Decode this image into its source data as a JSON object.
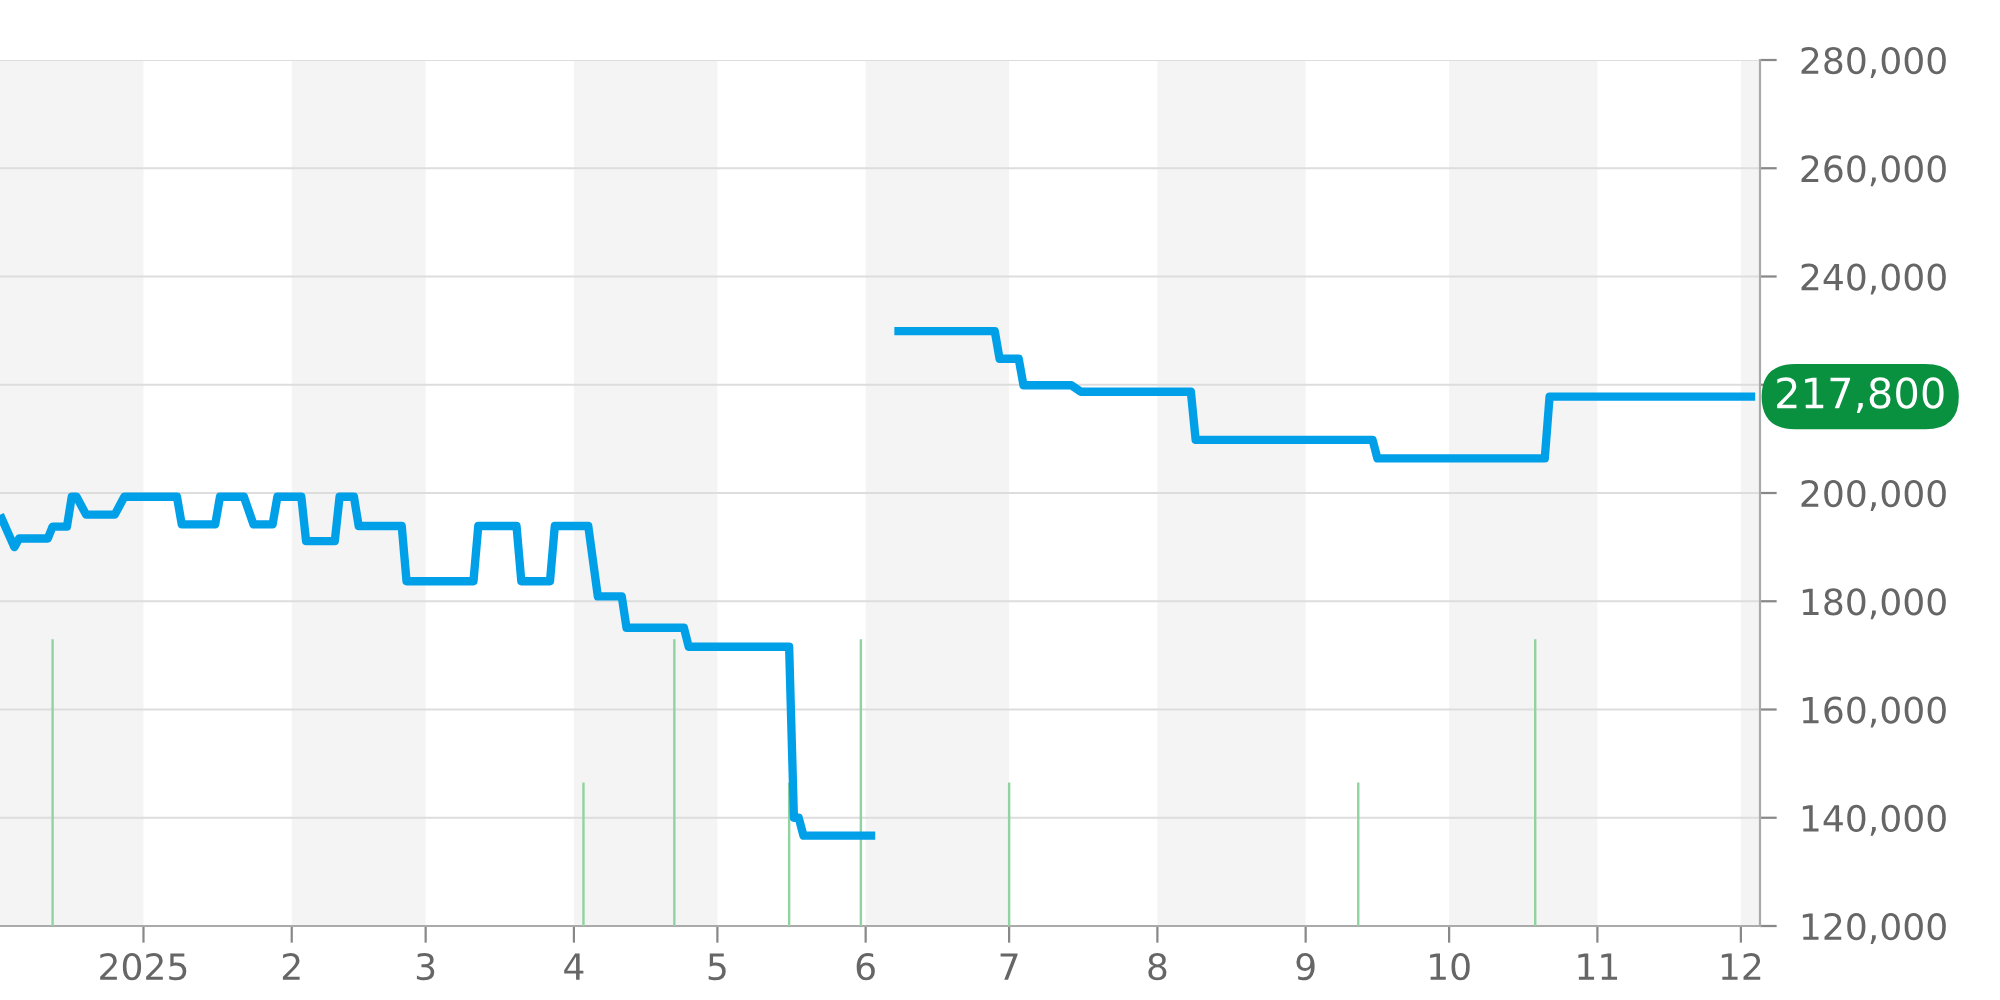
{
  "chart_data": {
    "type": "line",
    "xlim": [
      "2024-12-02",
      "2025-12-05"
    ],
    "ylim": [
      120000,
      280000
    ],
    "xticks": [
      {
        "value": "2025-01-01",
        "label": "2025"
      },
      {
        "value": "2025-02-01",
        "label": "2"
      },
      {
        "value": "2025-03-01",
        "label": "3"
      },
      {
        "value": "2025-04-01",
        "label": "4"
      },
      {
        "value": "2025-05-01",
        "label": "5"
      },
      {
        "value": "2025-06-01",
        "label": "6"
      },
      {
        "value": "2025-07-01",
        "label": "7"
      },
      {
        "value": "2025-08-01",
        "label": "8"
      },
      {
        "value": "2025-09-01",
        "label": "9"
      },
      {
        "value": "2025-10-01",
        "label": "10"
      },
      {
        "value": "2025-11-01",
        "label": "11"
      },
      {
        "value": "2025-12-01",
        "label": "12"
      }
    ],
    "yticks": [
      {
        "value": 120000,
        "label": "120,000"
      },
      {
        "value": 140000,
        "label": "140,000"
      },
      {
        "value": 160000,
        "label": "160,000"
      },
      {
        "value": 180000,
        "label": "180,000"
      },
      {
        "value": 200000,
        "label": "200,000"
      },
      {
        "value": 220000,
        "label": null
      },
      {
        "value": 240000,
        "label": "240,000"
      },
      {
        "value": 260000,
        "label": "260,000"
      },
      {
        "value": 280000,
        "label": "280,000"
      }
    ],
    "grid": "y",
    "bands": [
      {
        "axis": "x",
        "from": "2024-12-02",
        "to": "2025-01-01",
        "color": "#f4f4f4"
      },
      {
        "axis": "x",
        "from": "2025-02-01",
        "to": "2025-03-01",
        "color": "#f4f4f4"
      },
      {
        "axis": "x",
        "from": "2025-04-01",
        "to": "2025-05-01",
        "color": "#f4f4f4"
      },
      {
        "axis": "x",
        "from": "2025-06-01",
        "to": "2025-07-01",
        "color": "#f4f4f4"
      },
      {
        "axis": "x",
        "from": "2025-08-01",
        "to": "2025-09-01",
        "color": "#f4f4f4"
      },
      {
        "axis": "x",
        "from": "2025-10-01",
        "to": "2025-11-01",
        "color": "#f4f4f4"
      },
      {
        "axis": "x",
        "from": "2025-12-01",
        "to": "2025-12-05",
        "color": "#f4f4f4"
      }
    ],
    "series": [
      {
        "type": "bar",
        "color": "#8fd4a0",
        "x": [
          "2024-12-13",
          "2025-04-03",
          "2025-04-22",
          "2025-05-16",
          "2025-05-31",
          "2025-07-01",
          "2025-09-12",
          "2025-10-19"
        ],
        "base": [
          120000,
          120000,
          120000,
          120000,
          120000,
          120000,
          120000,
          120000
        ],
        "values": [
          53000,
          26500,
          53000,
          26500,
          53000,
          26500,
          26500,
          53000
        ]
      },
      {
        "color": "#00a0e9",
        "x": [
          "2024-12-02",
          "2024-12-05",
          "2024-12-06",
          "2024-12-12",
          "2024-12-13",
          "2024-12-16",
          "2024-12-17",
          "2024-12-18",
          "2024-12-20",
          "2024-12-26",
          "2024-12-28",
          "2025-01-08",
          "2025-01-09",
          "2025-01-16",
          "2025-01-17",
          "2025-01-22",
          "2025-01-24",
          "2025-01-28",
          "2025-01-29",
          "2025-02-03",
          "2025-02-04",
          "2025-02-10",
          "2025-02-11",
          "2025-02-14",
          "2025-02-15",
          "2025-02-24",
          "2025-02-25",
          "2025-03-11",
          "2025-03-12",
          "2025-03-20",
          "2025-03-21",
          "2025-03-27",
          "2025-03-28",
          "2025-04-04",
          "2025-04-06",
          "2025-04-11",
          "2025-04-12",
          "2025-04-24",
          "2025-04-25",
          "2025-05-16",
          "2025-05-17",
          "2025-05-18",
          "2025-05-19",
          "2025-06-03",
          "2025-06-05",
          "2025-06-07",
          "2025-06-28",
          "2025-06-29",
          "2025-07-03",
          "2025-07-04",
          "2025-07-14",
          "2025-07-16",
          "2025-08-08",
          "2025-08-09",
          "2025-09-15",
          "2025-09-16",
          "2025-10-21",
          "2025-10-22",
          "2025-12-04"
        ],
        "values": [
          196000,
          190000,
          191600,
          191600,
          193800,
          193800,
          199300,
          199300,
          196000,
          196000,
          199300,
          199300,
          194200,
          194200,
          199300,
          199300,
          194200,
          194200,
          199300,
          199300,
          191100,
          191100,
          199300,
          199300,
          193900,
          193900,
          183700,
          183700,
          193900,
          193900,
          183700,
          183700,
          193900,
          193900,
          180900,
          180900,
          175100,
          175100,
          171600,
          171600,
          140000,
          140000,
          136700,
          136700,
          null,
          229900,
          229900,
          224800,
          224800,
          219900,
          219900,
          218700,
          218700,
          209800,
          209800,
          206400,
          206400,
          217800,
          217800
        ]
      }
    ],
    "annotations": [
      {
        "text": "217,800",
        "x": "2025-12-04",
        "y": 217800
      }
    ]
  }
}
